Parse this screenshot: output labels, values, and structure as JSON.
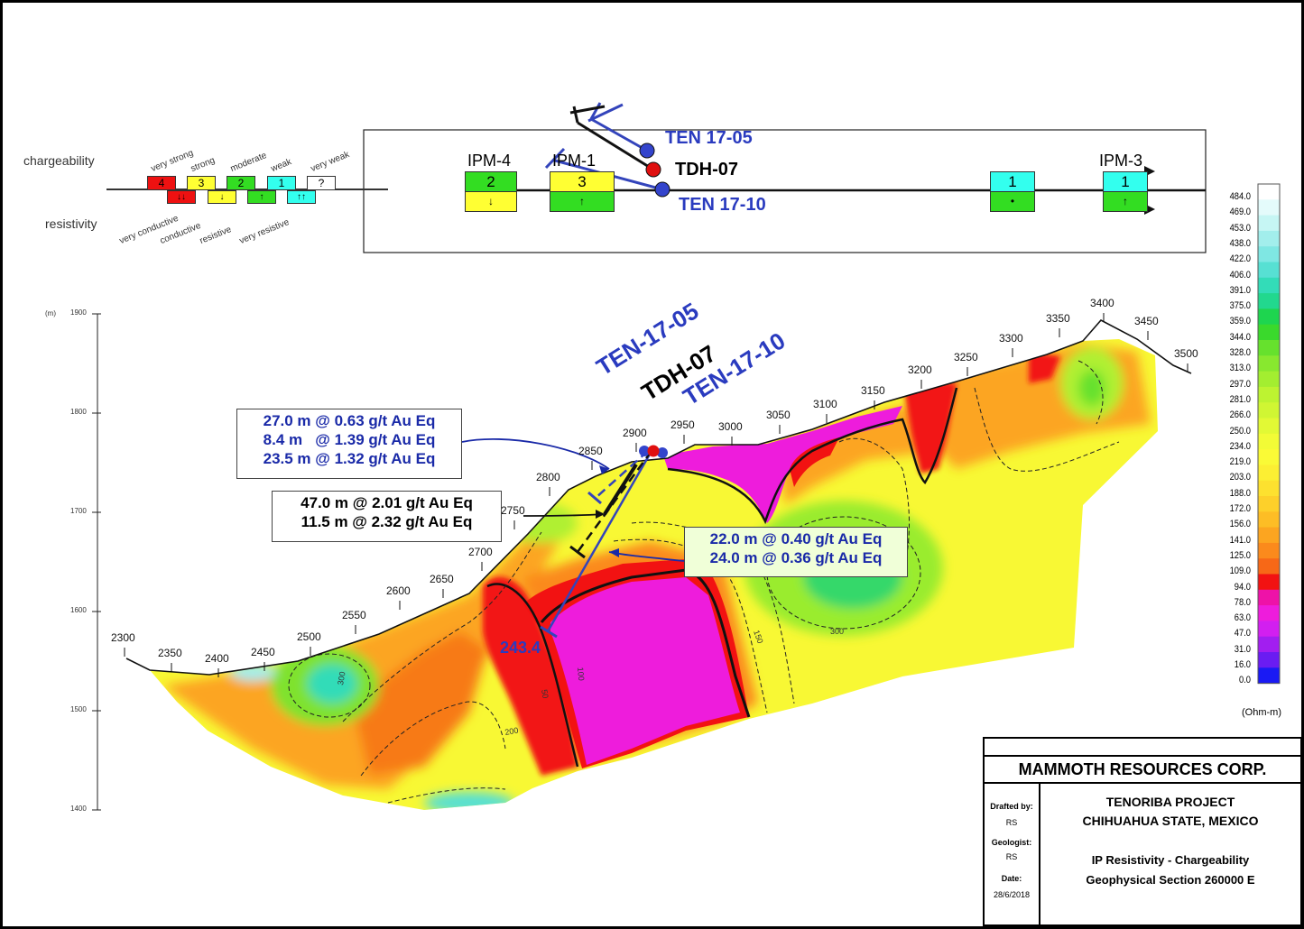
{
  "legend": {
    "chargeability_label": "chargeability",
    "resistivity_label": "resistivity",
    "charge_levels": [
      {
        "code": "4",
        "word": "very strong",
        "color": "#ee1111"
      },
      {
        "code": "3",
        "word": "strong",
        "color": "#ffff33"
      },
      {
        "code": "2",
        "word": "moderate",
        "color": "#33dd22"
      },
      {
        "code": "1",
        "word": "weak",
        "color": "#33ffee"
      },
      {
        "code": "?",
        "word": "very weak",
        "color": "#ffffff"
      }
    ],
    "resist_levels": [
      {
        "symbol": "↓↓",
        "word": "very conductive",
        "color": "#ee1111"
      },
      {
        "symbol": "↓",
        "word": "conductive",
        "color": "#ffff33"
      },
      {
        "symbol": "↑",
        "word": "resistive",
        "color": "#33dd22"
      },
      {
        "symbol": "↑↑",
        "word": "very resistive",
        "color": "#33ffee"
      }
    ]
  },
  "plan": {
    "ipm_labels": [
      "IPM-4",
      "IPM-1",
      "IPM-3"
    ],
    "anomalies": [
      {
        "charge": "2",
        "charge_color": "#33dd22",
        "resist_symbol": "↓",
        "resist_color": "#ffff33"
      },
      {
        "charge": "3",
        "charge_color": "#ffff33",
        "resist_symbol": "↑",
        "resist_color": "#33dd22"
      },
      {
        "charge": "1",
        "charge_color": "#33ffee",
        "resist_symbol": "•",
        "resist_color": "#33dd22"
      },
      {
        "charge": "1",
        "charge_color": "#33ffee",
        "resist_symbol": "↑",
        "resist_color": "#33dd22"
      }
    ],
    "drillholes": [
      "TEN 17-05",
      "TDH-07",
      "TEN 17-10"
    ]
  },
  "section": {
    "elevation_unit": "(m)",
    "elevation_ticks": [
      "1900",
      "1800",
      "1700",
      "1600",
      "1500",
      "1400"
    ],
    "station_labels": [
      "2300",
      "2350",
      "2400",
      "2450",
      "2500",
      "2550",
      "2600",
      "2650",
      "2700",
      "2750",
      "2800",
      "2850",
      "2900",
      "2950",
      "3000",
      "3050",
      "3100",
      "3150",
      "3200",
      "3250",
      "3300",
      "3350",
      "3400",
      "3450",
      "3500"
    ],
    "hole_labels": [
      "TEN-17-05",
      "TDH-07",
      "TEN-17-10"
    ],
    "depth_label": "243.4",
    "contour_labels": [
      "300",
      "200",
      "150",
      "100",
      "50",
      "300"
    ],
    "intercepts": {
      "ten_17_05": [
        "27.0 m @ 0.63 g/t Au Eq",
        "8.4 m   @ 1.39 g/t Au Eq",
        "23.5 m @ 1.32 g/t Au Eq"
      ],
      "tdh_07": [
        "47.0 m @ 2.01 g/t Au Eq",
        "11.5 m @ 2.32 g/t Au Eq"
      ],
      "ten_17_10": [
        "22.0 m @ 0.40 g/t Au Eq",
        "24.0 m @ 0.36 g/t Au Eq"
      ]
    }
  },
  "color_scale": {
    "unit": "(Ohm-m)",
    "values": [
      "484.0",
      "469.0",
      "453.0",
      "438.0",
      "422.0",
      "406.0",
      "391.0",
      "375.0",
      "359.0",
      "344.0",
      "328.0",
      "313.0",
      "297.0",
      "281.0",
      "266.0",
      "250.0",
      "234.0",
      "219.0",
      "203.0",
      "188.0",
      "172.0",
      "156.0",
      "141.0",
      "125.0",
      "109.0",
      "94.0",
      "78.0",
      "63.0",
      "47.0",
      "31.0",
      "16.0",
      "0.0"
    ],
    "colors": [
      "#ffffff",
      "#e4fbfb",
      "#c6f6f4",
      "#a2eeec",
      "#7fe7e3",
      "#57e0d3",
      "#33dcb8",
      "#22d88e",
      "#1ed54f",
      "#3ad92c",
      "#66e12d",
      "#88e82f",
      "#a3ee30",
      "#bdf331",
      "#d0f633",
      "#e2f935",
      "#f2fb36",
      "#fafa36",
      "#fcef33",
      "#fde12f",
      "#fdd02a",
      "#fdbd25",
      "#fca520",
      "#fb8a1c",
      "#f76817",
      "#f21212",
      "#ee12a8",
      "#ee1cdc",
      "#d21ff0",
      "#a21ef0",
      "#6a1cf2",
      "#1a1af4"
    ]
  },
  "title_block": {
    "company": "MAMMOTH RESOURCES CORP.",
    "drafted_label": "Drafted by:",
    "drafted_value": "RS",
    "geologist_label": "Geologist:",
    "geologist_value": "RS",
    "date_label": "Date:",
    "date_value": "28/6/2018",
    "project_line1": "TENORIBA PROJECT",
    "project_line2": "CHIHUAHUA STATE, MEXICO",
    "title_line1": "IP Resistivity - Chargeability",
    "title_line2": "Geophysical Section 260000 E"
  }
}
